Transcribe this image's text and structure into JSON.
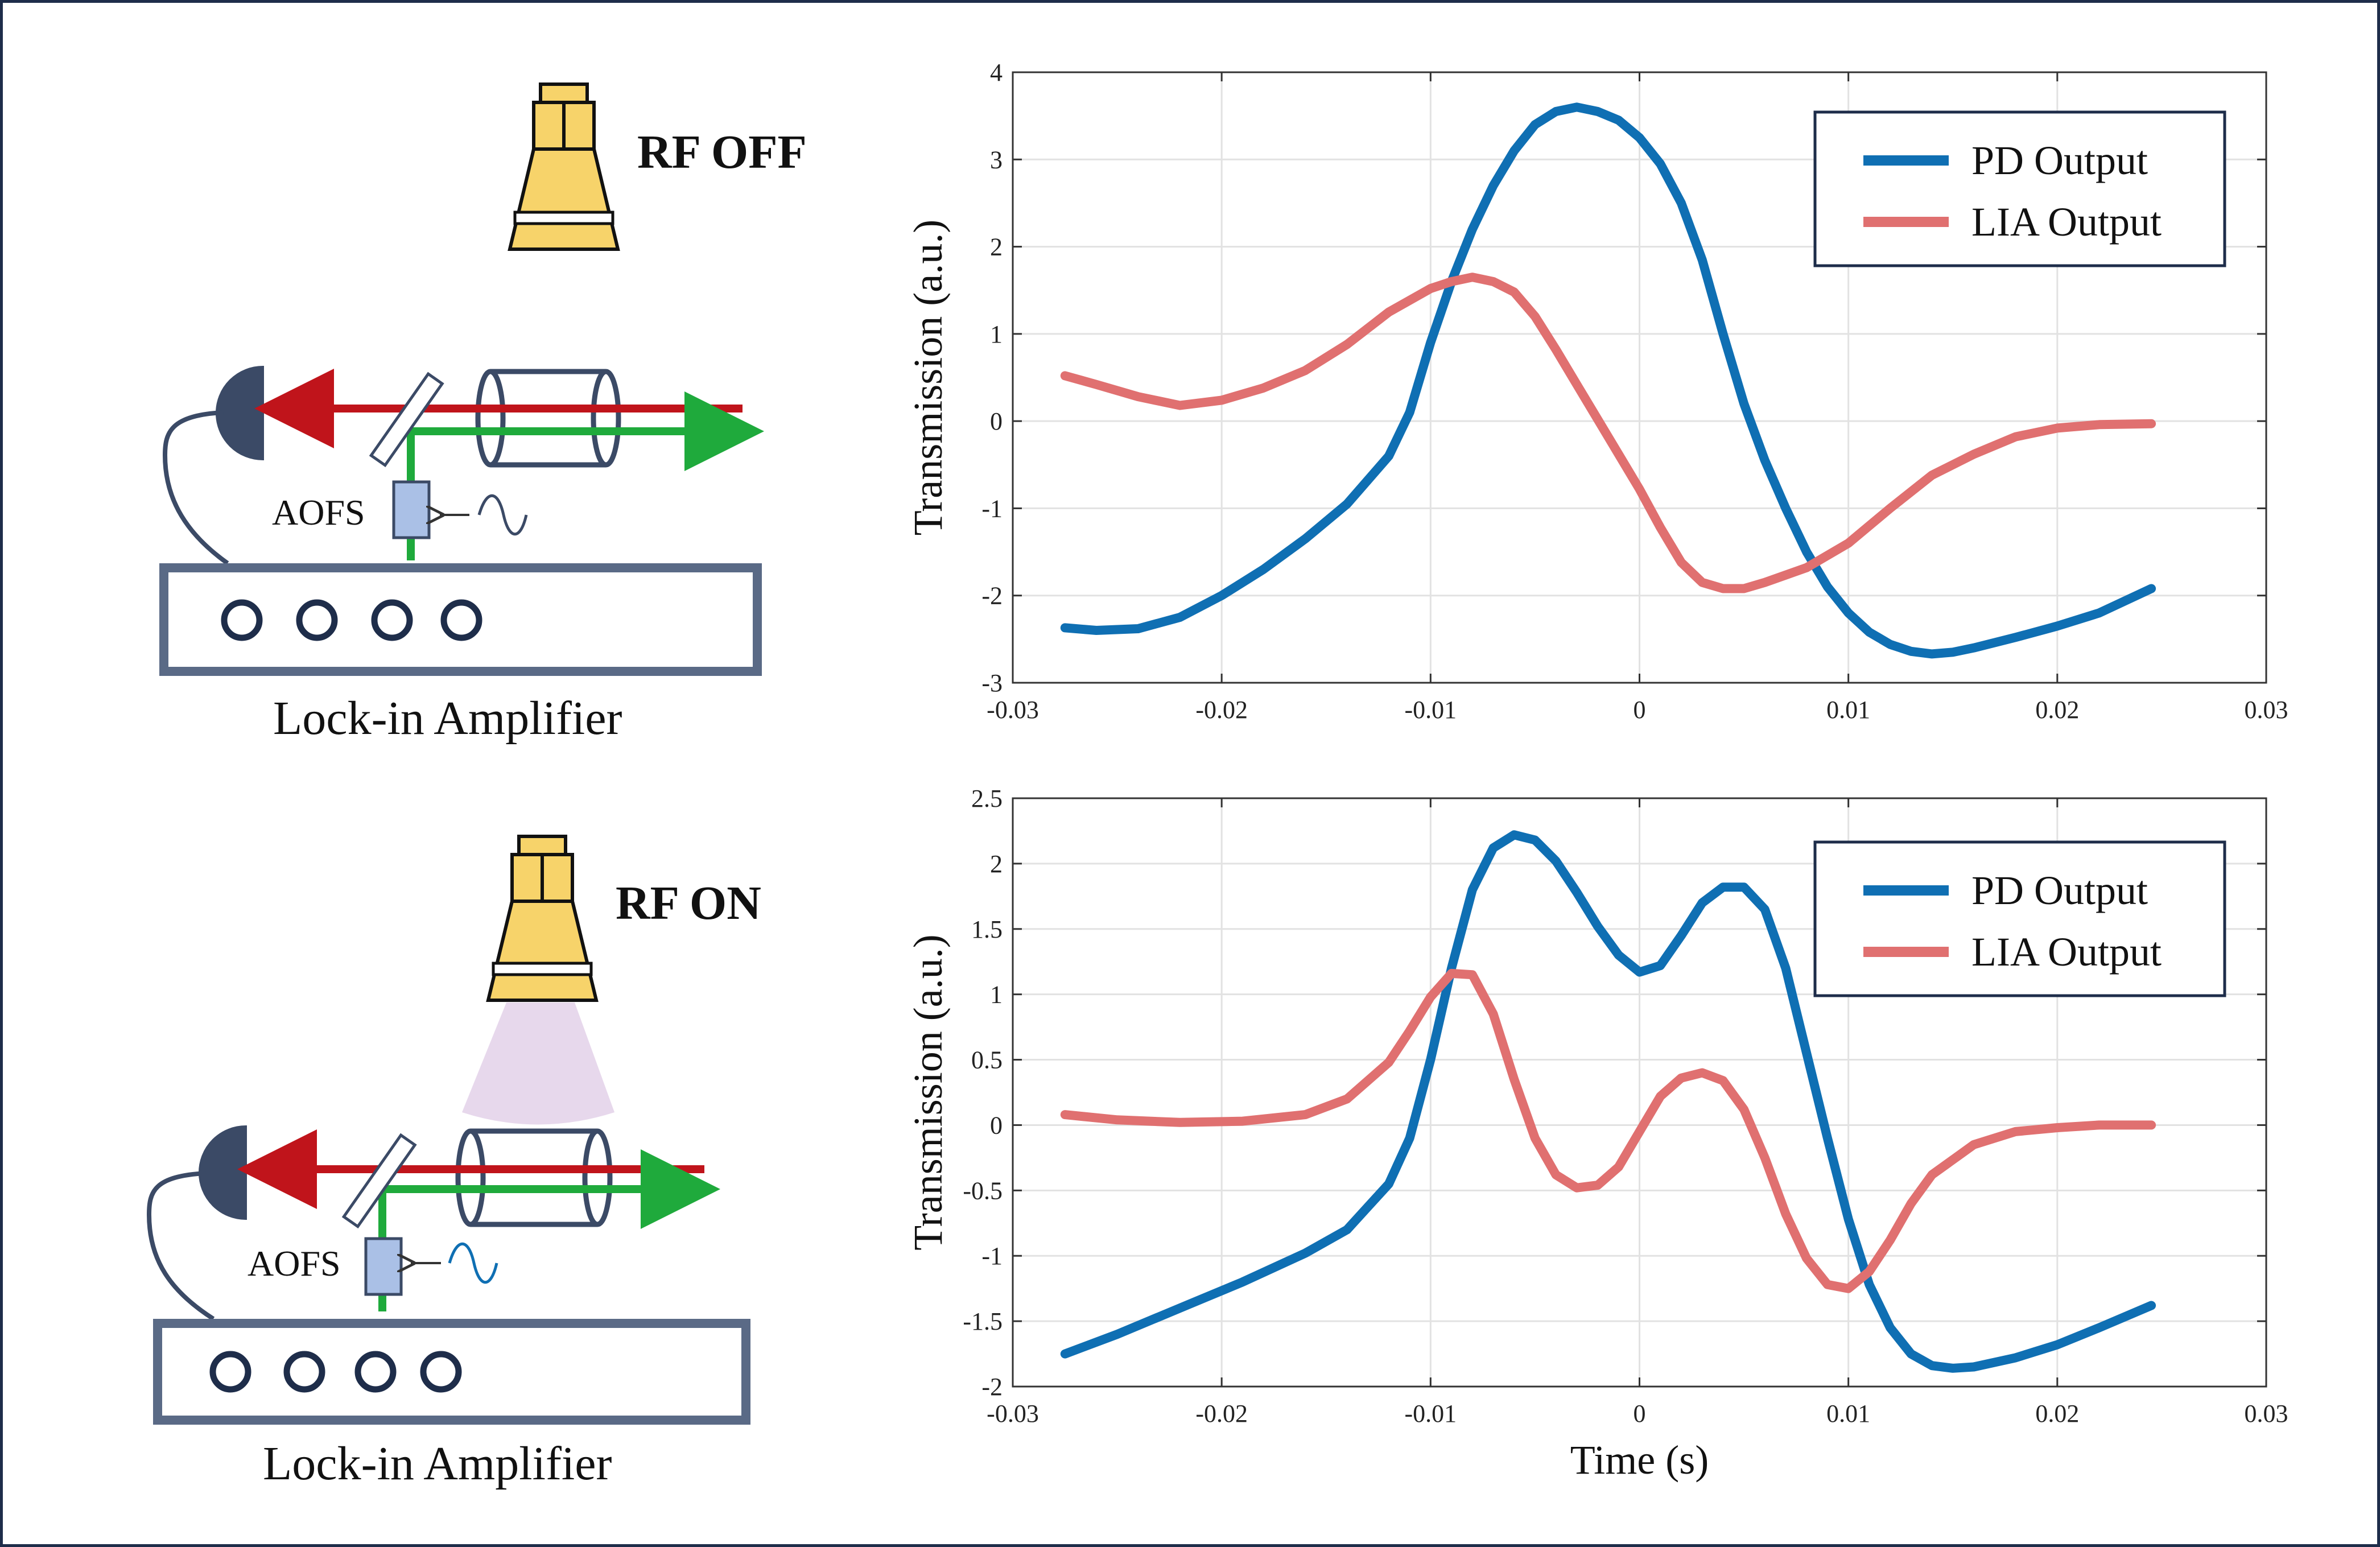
{
  "figure": {
    "top_panel": {
      "rf_label": "RF OFF",
      "aofs_label": "AOFS",
      "instrument_label": "Lock-in Amplifier"
    },
    "bottom_panel": {
      "rf_label": "RF ON",
      "aofs_label": "AOFS",
      "instrument_label": "Lock-in Amplifier"
    }
  },
  "colors": {
    "pd": "#0f6fb3",
    "lia": "#e07070",
    "red_beam": "#c0141b",
    "green_beam": "#1faa3c",
    "navy": "#3b4a66",
    "horn": "#f7d36a",
    "aofs": "#aac0e6",
    "rf_cone": "#e7d8ec"
  },
  "chart_data": [
    {
      "type": "line",
      "title": "",
      "xlabel": "",
      "ylabel": "Transmission (a.u.)",
      "xlim": [
        -0.03,
        0.03
      ],
      "ylim": [
        -3,
        4
      ],
      "xticks": [
        -0.03,
        -0.02,
        -0.01,
        0,
        0.01,
        0.02,
        0.03
      ],
      "xtick_labels": [
        "-0.03",
        "-0.02",
        "-0.01",
        "0",
        "0.01",
        "0.02",
        "0.03"
      ],
      "yticks": [
        -3,
        -2,
        -1,
        0,
        1,
        2,
        3,
        4
      ],
      "ytick_labels": [
        "-3",
        "-2",
        "-1",
        "0",
        "1",
        "2",
        "3",
        "4"
      ],
      "grid": true,
      "legend": "top-right",
      "series": [
        {
          "name": "PD Output",
          "color": "#0f6fb3",
          "points": [
            [
              -0.0275,
              -2.37
            ],
            [
              -0.026,
              -2.4
            ],
            [
              -0.024,
              -2.38
            ],
            [
              -0.022,
              -2.25
            ],
            [
              -0.02,
              -2.0
            ],
            [
              -0.018,
              -1.7
            ],
            [
              -0.016,
              -1.35
            ],
            [
              -0.014,
              -0.95
            ],
            [
              -0.012,
              -0.4
            ],
            [
              -0.011,
              0.1
            ],
            [
              -0.01,
              0.9
            ],
            [
              -0.009,
              1.6
            ],
            [
              -0.008,
              2.2
            ],
            [
              -0.007,
              2.7
            ],
            [
              -0.006,
              3.1
            ],
            [
              -0.005,
              3.4
            ],
            [
              -0.004,
              3.55
            ],
            [
              -0.003,
              3.6
            ],
            [
              -0.002,
              3.55
            ],
            [
              -0.001,
              3.45
            ],
            [
              0,
              3.25
            ],
            [
              0.001,
              2.95
            ],
            [
              0.002,
              2.5
            ],
            [
              0.003,
              1.85
            ],
            [
              0.004,
              1.0
            ],
            [
              0.005,
              0.2
            ],
            [
              0.006,
              -0.45
            ],
            [
              0.007,
              -1.0
            ],
            [
              0.008,
              -1.5
            ],
            [
              0.009,
              -1.9
            ],
            [
              0.01,
              -2.2
            ],
            [
              0.011,
              -2.42
            ],
            [
              0.012,
              -2.56
            ],
            [
              0.013,
              -2.64
            ],
            [
              0.014,
              -2.67
            ],
            [
              0.015,
              -2.65
            ],
            [
              0.016,
              -2.6
            ],
            [
              0.018,
              -2.48
            ],
            [
              0.02,
              -2.35
            ],
            [
              0.022,
              -2.2
            ],
            [
              0.0245,
              -1.92
            ]
          ]
        },
        {
          "name": "LIA Output",
          "color": "#e07070",
          "points": [
            [
              -0.0275,
              0.52
            ],
            [
              -0.026,
              0.42
            ],
            [
              -0.024,
              0.28
            ],
            [
              -0.022,
              0.18
            ],
            [
              -0.02,
              0.24
            ],
            [
              -0.018,
              0.38
            ],
            [
              -0.016,
              0.58
            ],
            [
              -0.014,
              0.88
            ],
            [
              -0.012,
              1.25
            ],
            [
              -0.01,
              1.52
            ],
            [
              -0.009,
              1.6
            ],
            [
              -0.008,
              1.65
            ],
            [
              -0.007,
              1.6
            ],
            [
              -0.006,
              1.48
            ],
            [
              -0.005,
              1.2
            ],
            [
              -0.004,
              0.82
            ],
            [
              -0.003,
              0.42
            ],
            [
              -0.002,
              0.02
            ],
            [
              -0.001,
              -0.38
            ],
            [
              0,
              -0.78
            ],
            [
              0.001,
              -1.22
            ],
            [
              0.002,
              -1.62
            ],
            [
              0.003,
              -1.85
            ],
            [
              0.004,
              -1.92
            ],
            [
              0.005,
              -1.92
            ],
            [
              0.006,
              -1.85
            ],
            [
              0.008,
              -1.68
            ],
            [
              0.01,
              -1.4
            ],
            [
              0.012,
              -1.0
            ],
            [
              0.014,
              -0.62
            ],
            [
              0.016,
              -0.38
            ],
            [
              0.018,
              -0.18
            ],
            [
              0.02,
              -0.08
            ],
            [
              0.022,
              -0.04
            ],
            [
              0.0245,
              -0.03
            ]
          ]
        }
      ]
    },
    {
      "type": "line",
      "title": "",
      "xlabel": "Time (s)",
      "ylabel": "Transmission (a.u.)",
      "xlim": [
        -0.03,
        0.03
      ],
      "ylim": [
        -2,
        2.5
      ],
      "xticks": [
        -0.03,
        -0.02,
        -0.01,
        0,
        0.01,
        0.02,
        0.03
      ],
      "xtick_labels": [
        "-0.03",
        "-0.02",
        "-0.01",
        "0",
        "0.01",
        "0.02",
        "0.03"
      ],
      "yticks": [
        -2,
        -1.5,
        -1,
        -0.5,
        0,
        0.5,
        1,
        1.5,
        2,
        2.5
      ],
      "ytick_labels": [
        "-2",
        "-1.5",
        "-1",
        "-0.5",
        "0",
        "0.5",
        "1",
        "1.5",
        "2",
        "2.5"
      ],
      "grid": true,
      "legend": "top-right",
      "series": [
        {
          "name": "PD Output",
          "color": "#0f6fb3",
          "points": [
            [
              -0.0275,
              -1.75
            ],
            [
              -0.025,
              -1.6
            ],
            [
              -0.022,
              -1.4
            ],
            [
              -0.019,
              -1.2
            ],
            [
              -0.016,
              -0.98
            ],
            [
              -0.014,
              -0.8
            ],
            [
              -0.012,
              -0.45
            ],
            [
              -0.011,
              -0.1
            ],
            [
              -0.01,
              0.5
            ],
            [
              -0.009,
              1.2
            ],
            [
              -0.008,
              1.8
            ],
            [
              -0.007,
              2.12
            ],
            [
              -0.006,
              2.22
            ],
            [
              -0.005,
              2.18
            ],
            [
              -0.004,
              2.02
            ],
            [
              -0.003,
              1.78
            ],
            [
              -0.002,
              1.52
            ],
            [
              -0.001,
              1.3
            ],
            [
              0,
              1.17
            ],
            [
              0.001,
              1.22
            ],
            [
              0.002,
              1.45
            ],
            [
              0.003,
              1.7
            ],
            [
              0.004,
              1.82
            ],
            [
              0.005,
              1.82
            ],
            [
              0.006,
              1.65
            ],
            [
              0.007,
              1.2
            ],
            [
              0.008,
              0.55
            ],
            [
              0.009,
              -0.1
            ],
            [
              0.01,
              -0.72
            ],
            [
              0.011,
              -1.22
            ],
            [
              0.012,
              -1.55
            ],
            [
              0.013,
              -1.75
            ],
            [
              0.014,
              -1.84
            ],
            [
              0.015,
              -1.86
            ],
            [
              0.016,
              -1.85
            ],
            [
              0.018,
              -1.78
            ],
            [
              0.02,
              -1.68
            ],
            [
              0.022,
              -1.55
            ],
            [
              0.0245,
              -1.38
            ]
          ]
        },
        {
          "name": "LIA Output",
          "color": "#e07070",
          "points": [
            [
              -0.0275,
              0.08
            ],
            [
              -0.025,
              0.04
            ],
            [
              -0.022,
              0.02
            ],
            [
              -0.019,
              0.03
            ],
            [
              -0.016,
              0.08
            ],
            [
              -0.014,
              0.2
            ],
            [
              -0.012,
              0.48
            ],
            [
              -0.011,
              0.72
            ],
            [
              -0.01,
              0.98
            ],
            [
              -0.009,
              1.16
            ],
            [
              -0.008,
              1.15
            ],
            [
              -0.007,
              0.85
            ],
            [
              -0.006,
              0.35
            ],
            [
              -0.005,
              -0.1
            ],
            [
              -0.004,
              -0.38
            ],
            [
              -0.003,
              -0.48
            ],
            [
              -0.002,
              -0.46
            ],
            [
              -0.001,
              -0.32
            ],
            [
              0,
              -0.05
            ],
            [
              0.001,
              0.22
            ],
            [
              0.002,
              0.36
            ],
            [
              0.003,
              0.4
            ],
            [
              0.004,
              0.34
            ],
            [
              0.005,
              0.12
            ],
            [
              0.006,
              -0.25
            ],
            [
              0.007,
              -0.68
            ],
            [
              0.008,
              -1.02
            ],
            [
              0.009,
              -1.22
            ],
            [
              0.01,
              -1.25
            ],
            [
              0.011,
              -1.12
            ],
            [
              0.012,
              -0.88
            ],
            [
              0.013,
              -0.6
            ],
            [
              0.014,
              -0.38
            ],
            [
              0.016,
              -0.15
            ],
            [
              0.018,
              -0.05
            ],
            [
              0.02,
              -0.02
            ],
            [
              0.022,
              0.0
            ],
            [
              0.0245,
              0.0
            ]
          ]
        }
      ]
    }
  ]
}
